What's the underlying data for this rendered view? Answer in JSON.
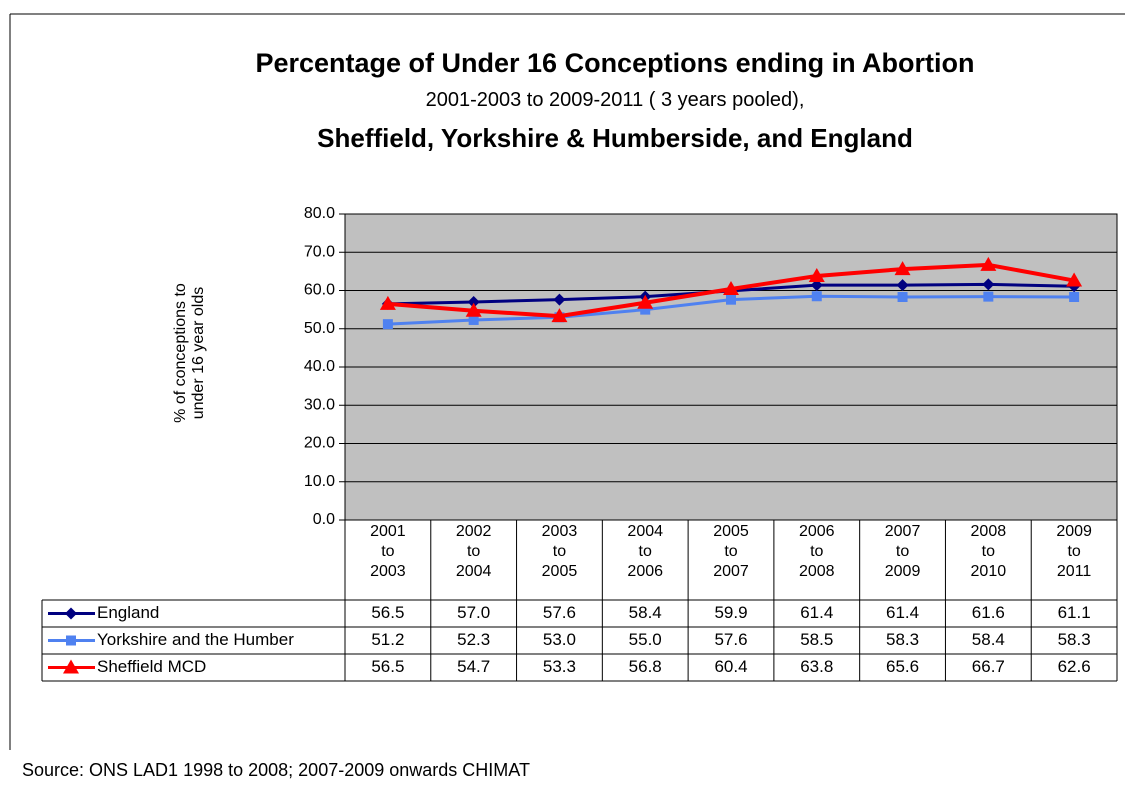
{
  "chart_data": {
    "type": "line",
    "title": "Percentage of Under 16 Conceptions ending in Abortion",
    "subtitle": "2001-2003 to 2009-2011 ( 3 years pooled),",
    "subtitle2": "Sheffield, Yorkshire & Humberside, and England",
    "y_label": "% of conceptions to under 16 year olds",
    "source": "Source: ONS LAD1 1998 to 2008; 2007-2009 onwards CHIMAT",
    "categories": [
      "2001 to 2003",
      "2002 to 2004",
      "2003 to 2005",
      "2004 to 2006",
      "2005 to 2007",
      "2006 to 2008",
      "2007 to 2009",
      "2008 to 2010",
      "2009 to 2011"
    ],
    "ylim": [
      0,
      80
    ],
    "yticks": [
      {
        "value": 0,
        "label": "0.0"
      },
      {
        "value": 10,
        "label": "10.0"
      },
      {
        "value": 20,
        "label": "20.0"
      },
      {
        "value": 30,
        "label": "30.0"
      },
      {
        "value": 40,
        "label": "40.0"
      },
      {
        "value": 50,
        "label": "50.0"
      },
      {
        "value": 60,
        "label": "60.0"
      },
      {
        "value": 70,
        "label": "70.0"
      },
      {
        "value": 80,
        "label": "80.0"
      }
    ],
    "grid": true,
    "series": [
      {
        "name": "England",
        "color": "#000080",
        "marker": "diamond",
        "values": [
          56.5,
          57.0,
          57.6,
          58.4,
          59.9,
          61.4,
          61.4,
          61.6,
          61.1
        ],
        "value_labels": [
          "56.5",
          "57.0",
          "57.6",
          "58.4",
          "59.9",
          "61.4",
          "61.4",
          "61.6",
          "61.1"
        ]
      },
      {
        "name": "Yorkshire and the Humber",
        "color": "#4f81f0",
        "marker": "square",
        "values": [
          51.2,
          52.3,
          53.0,
          55.0,
          57.6,
          58.5,
          58.3,
          58.4,
          58.3
        ],
        "value_labels": [
          "51.2",
          "52.3",
          "53.0",
          "55.0",
          "57.6",
          "58.5",
          "58.3",
          "58.4",
          "58.3"
        ]
      },
      {
        "name": "Sheffield MCD",
        "color": "#ff0000",
        "marker": "triangle",
        "values": [
          56.5,
          54.7,
          53.3,
          56.8,
          60.4,
          63.8,
          65.6,
          66.7,
          62.6
        ],
        "value_labels": [
          "56.5",
          "54.7",
          "53.3",
          "56.8",
          "60.4",
          "63.8",
          "65.6",
          "66.7",
          "62.6"
        ]
      }
    ]
  }
}
